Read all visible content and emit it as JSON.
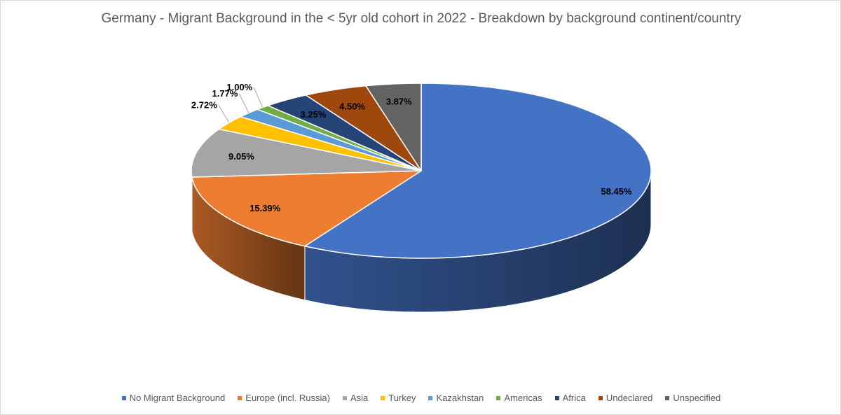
{
  "chart_data": {
    "type": "pie",
    "style": "3d",
    "title": "Germany - Migrant Background in the < 5yr old cohort in 2022 - Breakdown by background continent/country",
    "legend_position": "bottom",
    "slices": [
      {
        "name": "No Migrant Background",
        "value": 58.45,
        "label": "58.45%",
        "color": "#4472C4"
      },
      {
        "name": "Europe (incl. Russia)",
        "value": 15.39,
        "label": "15.39%",
        "color": "#ED7D31"
      },
      {
        "name": "Asia",
        "value": 9.05,
        "label": "9.05%",
        "color": "#A5A5A5"
      },
      {
        "name": "Turkey",
        "value": 2.72,
        "label": "2.72%",
        "color": "#FFC000"
      },
      {
        "name": "Kazakhstan",
        "value": 1.77,
        "label": "1.77%",
        "color": "#5B9BD5"
      },
      {
        "name": "Americas",
        "value": 1.0,
        "label": "1.00%",
        "color": "#70AD47"
      },
      {
        "name": "Africa",
        "value": 3.25,
        "label": "3.25%",
        "color": "#264478"
      },
      {
        "name": "Undeclared",
        "value": 4.5,
        "label": "4.50%",
        "color": "#9E480E"
      },
      {
        "name": "Unspecified",
        "value": 3.87,
        "label": "3.87%",
        "color": "#636363"
      }
    ]
  }
}
